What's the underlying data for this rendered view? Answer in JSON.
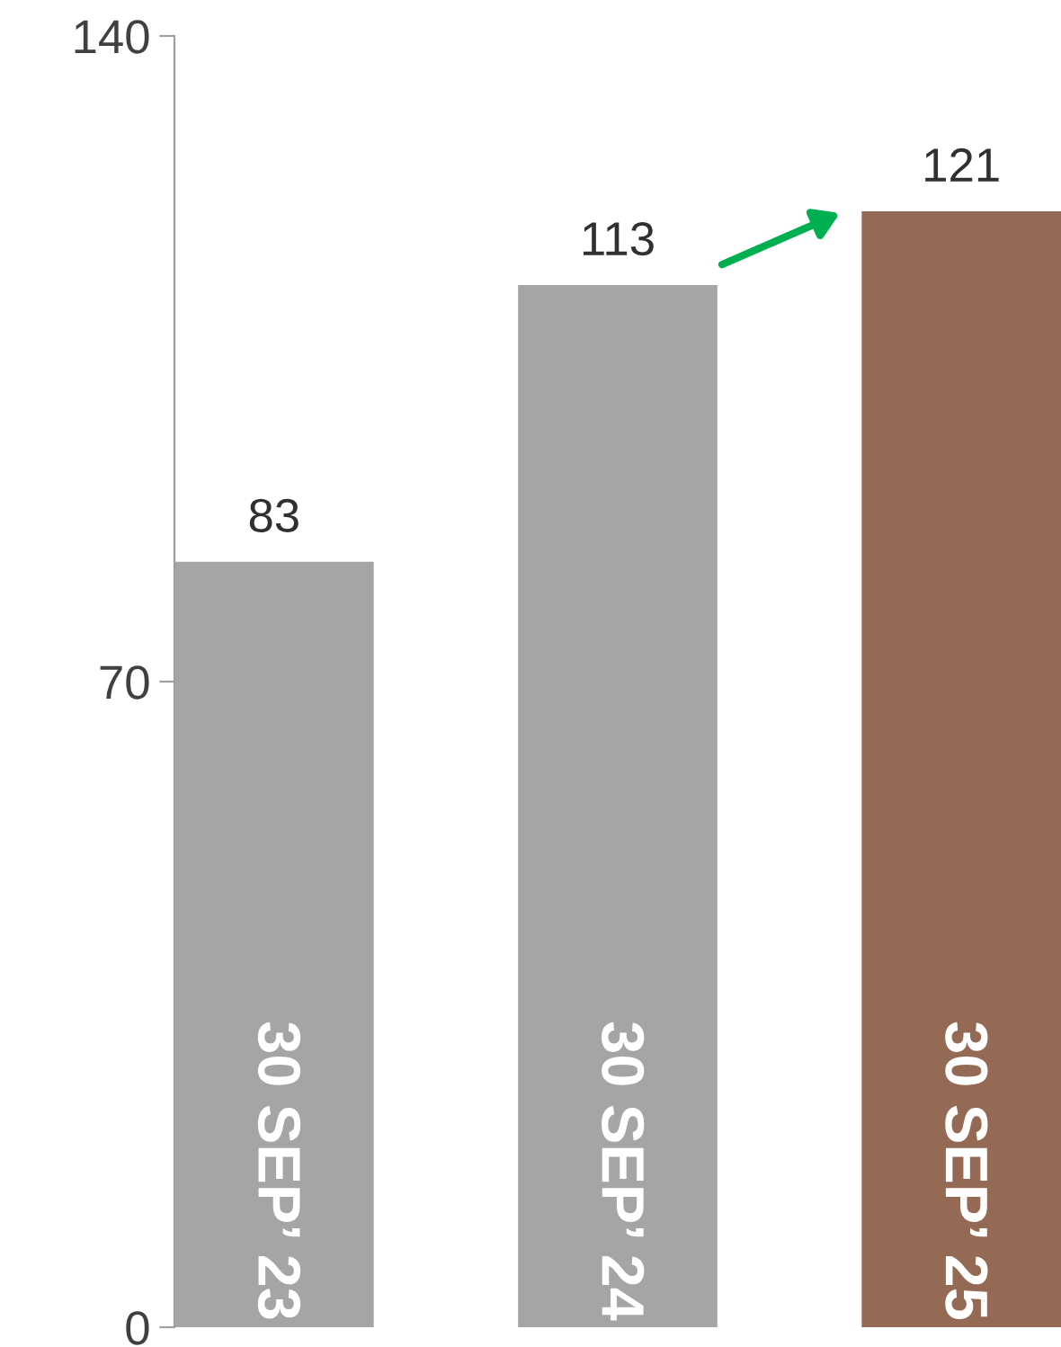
{
  "chart_data": {
    "type": "bar",
    "categories": [
      "30 SEP’ 23",
      "30 SEP’ 24",
      "30 SEP’ 25"
    ],
    "values": [
      83,
      113,
      121
    ],
    "colors": [
      "#a5a5a5",
      "#a5a5a5",
      "#956a55"
    ],
    "ylim": [
      0,
      140
    ],
    "yticks": [
      0,
      70,
      140
    ],
    "data_labels": true,
    "grid": false
  }
}
